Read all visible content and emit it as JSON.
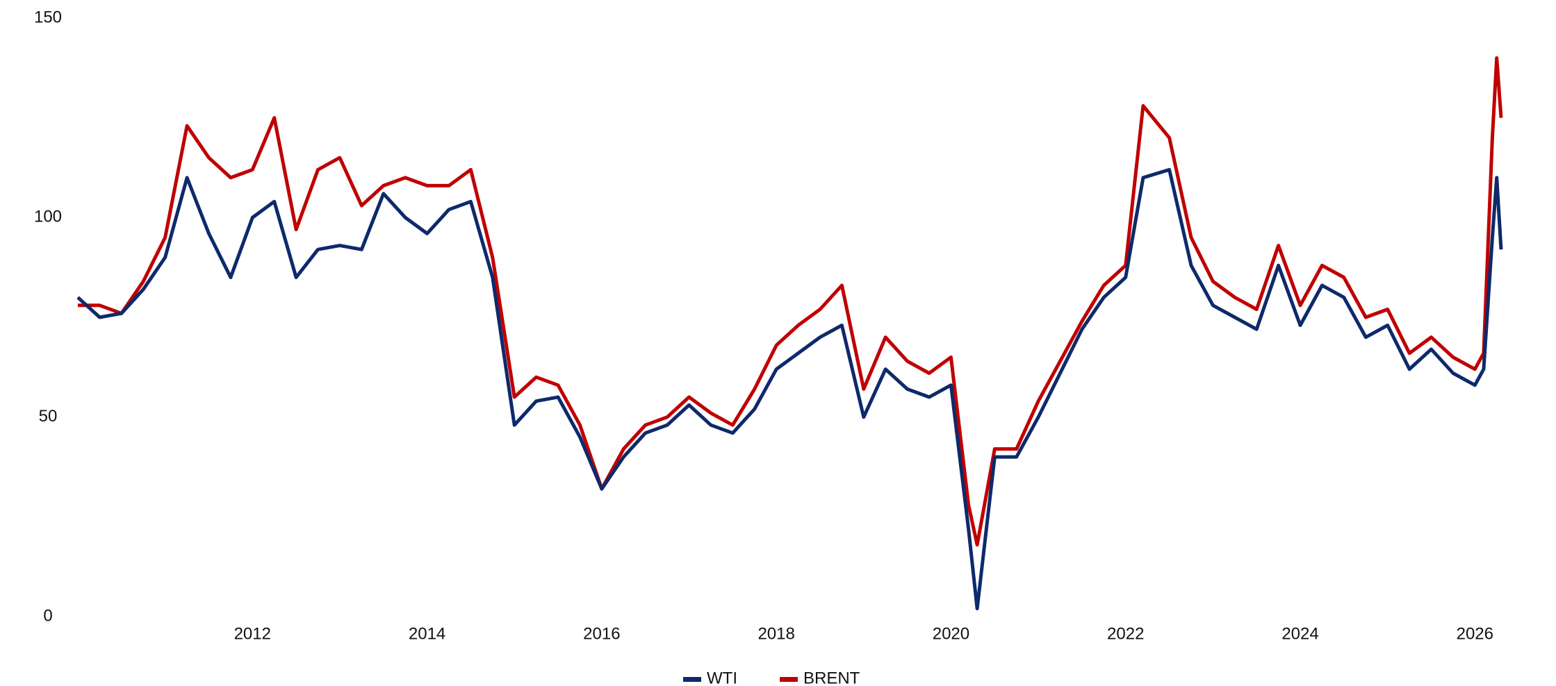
{
  "chart_data": {
    "type": "line",
    "x": [
      2010.0,
      2010.25,
      2010.5,
      2010.75,
      2011.0,
      2011.25,
      2011.5,
      2011.75,
      2012.0,
      2012.25,
      2012.5,
      2012.75,
      2013.0,
      2013.25,
      2013.5,
      2013.75,
      2014.0,
      2014.25,
      2014.5,
      2014.75,
      2015.0,
      2015.25,
      2015.5,
      2015.75,
      2016.0,
      2016.25,
      2016.5,
      2016.75,
      2017.0,
      2017.25,
      2017.5,
      2017.75,
      2018.0,
      2018.25,
      2018.5,
      2018.75,
      2019.0,
      2019.25,
      2019.5,
      2019.75,
      2020.0,
      2020.2,
      2020.3,
      2020.5,
      2020.75,
      2021.0,
      2021.25,
      2021.5,
      2021.75,
      2022.0,
      2022.2,
      2022.5,
      2022.75,
      2023.0,
      2023.25,
      2023.5,
      2023.75,
      2024.0,
      2024.25,
      2024.5,
      2024.75,
      2025.0,
      2025.25,
      2025.5,
      2025.75,
      2026.0,
      2026.1,
      2026.2,
      2026.25,
      2026.3
    ],
    "series": [
      {
        "name": "WTI",
        "color": "#0d2a6b",
        "values": [
          80,
          75,
          76,
          82,
          90,
          110,
          96,
          85,
          100,
          104,
          85,
          92,
          93,
          92,
          106,
          100,
          96,
          102,
          104,
          85,
          48,
          54,
          55,
          45,
          32,
          40,
          46,
          48,
          53,
          48,
          46,
          52,
          62,
          66,
          70,
          73,
          50,
          62,
          57,
          55,
          58,
          22,
          2,
          40,
          40,
          50,
          61,
          72,
          80,
          85,
          110,
          112,
          88,
          78,
          75,
          72,
          88,
          73,
          83,
          80,
          70,
          73,
          62,
          67,
          61,
          58,
          62,
          95,
          110,
          92
        ]
      },
      {
        "name": "BRENT",
        "color": "#c00000",
        "values": [
          78,
          78,
          76,
          84,
          95,
          123,
          115,
          110,
          112,
          125,
          97,
          112,
          115,
          103,
          108,
          110,
          108,
          108,
          112,
          90,
          55,
          60,
          58,
          48,
          32,
          42,
          48,
          50,
          55,
          51,
          48,
          57,
          68,
          73,
          77,
          83,
          57,
          70,
          64,
          61,
          65,
          28,
          18,
          42,
          42,
          54,
          64,
          74,
          83,
          88,
          128,
          120,
          95,
          84,
          80,
          77,
          93,
          78,
          88,
          85,
          75,
          77,
          66,
          70,
          65,
          62,
          66,
          120,
          140,
          125
        ]
      }
    ],
    "xlim": [
      2010,
      2026.3
    ],
    "xticks": [
      2012,
      2014,
      2016,
      2018,
      2020,
      2022,
      2024,
      2026
    ],
    "ylim": [
      0,
      150
    ],
    "yticks": [
      0,
      50,
      100,
      150
    ],
    "grid": false,
    "legend": "bottom"
  }
}
